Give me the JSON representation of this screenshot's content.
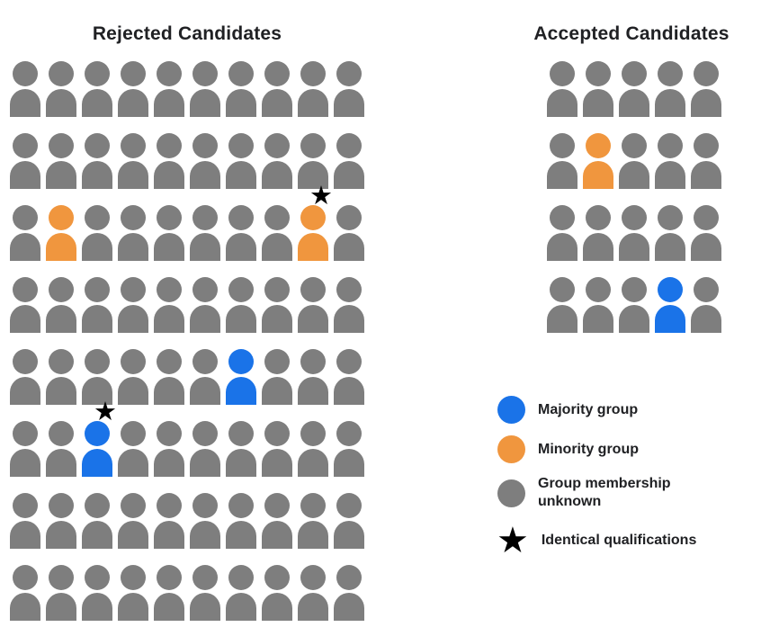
{
  "panels": {
    "rejected": {
      "title": "Rejected Candidates",
      "cols": 10,
      "rows": 8,
      "specials": [
        {
          "row": 2,
          "col": 1,
          "group": "minority",
          "star": false
        },
        {
          "row": 2,
          "col": 8,
          "group": "minority",
          "star": true
        },
        {
          "row": 4,
          "col": 6,
          "group": "majority",
          "star": false
        },
        {
          "row": 5,
          "col": 2,
          "group": "majority",
          "star": true
        }
      ]
    },
    "accepted": {
      "title": "Accepted Candidates",
      "cols": 5,
      "rows": 4,
      "specials": [
        {
          "row": 1,
          "col": 1,
          "group": "minority",
          "star": false
        },
        {
          "row": 3,
          "col": 3,
          "group": "majority",
          "star": false
        }
      ]
    }
  },
  "colors": {
    "majority": "#1A73E8",
    "minority": "#F0963E",
    "unknown": "#7E7E7E"
  },
  "icons": {
    "star_glyph": "★"
  },
  "legend": {
    "items": [
      {
        "type": "circle",
        "group": "majority",
        "label": "Majority group"
      },
      {
        "type": "circle",
        "group": "minority",
        "label": "Minority group"
      },
      {
        "type": "circle",
        "group": "unknown",
        "label": "Group membership unknown"
      },
      {
        "type": "star",
        "label": "Identical qualifications"
      }
    ]
  }
}
